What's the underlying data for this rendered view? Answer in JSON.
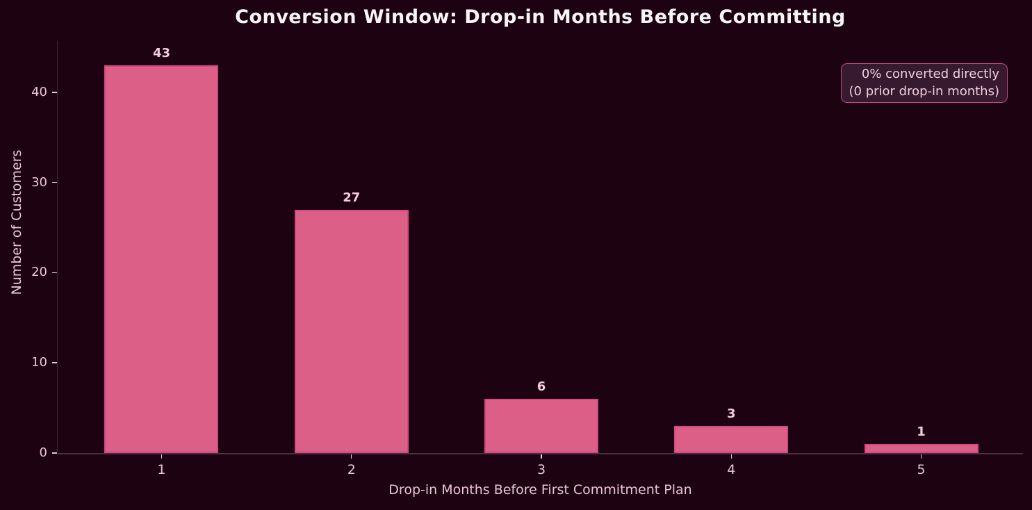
{
  "chart_data": {
    "type": "bar",
    "title": "Conversion Window: Drop-in Months Before Committing",
    "xlabel": "Drop-in Months Before First Commitment Plan",
    "ylabel": "Number of Customers",
    "categories": [
      "1",
      "2",
      "3",
      "4",
      "5"
    ],
    "values": [
      43,
      27,
      6,
      3,
      1
    ],
    "yticks": [
      0,
      10,
      20,
      30,
      40
    ],
    "ylim": [
      0,
      45.7
    ],
    "xlim": [
      0.453,
      5.536
    ],
    "bar_width_units": 0.6,
    "grid": false,
    "legend": "none",
    "annotation": {
      "line1": "0% converted directly",
      "line2": "(0 prior drop-in months)"
    },
    "colors": {
      "background": "#1d0211",
      "bar_fill": "#dc5f88",
      "bar_edge": "#d94680",
      "text": "#e9c5d7",
      "title": "#f8f5f7",
      "value_label": "#f3ccdd",
      "spine_left": "#3e2433",
      "spine_bottom": "#4a3140",
      "annotation_border": "#c34a7e",
      "annotation_bg": "#381a30",
      "annotation_text": "#f0cede"
    }
  }
}
